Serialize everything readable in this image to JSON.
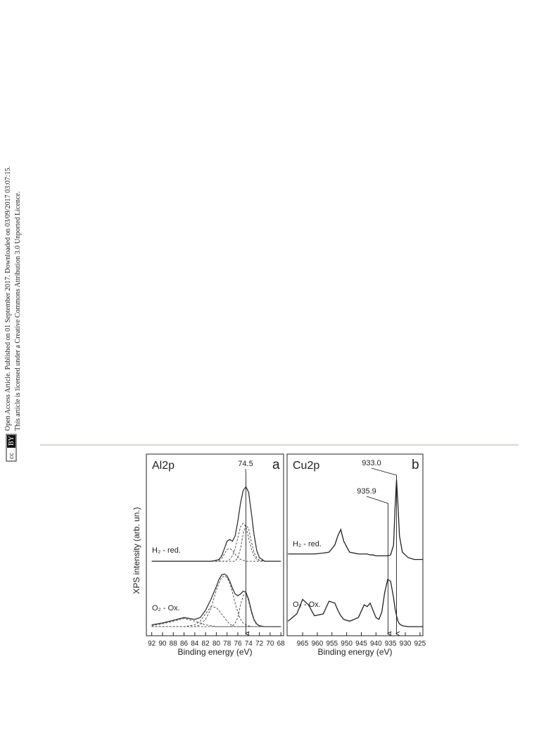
{
  "side_note": {
    "line1": "Open Access Article. Published on 01 September 2017. Downloaded on 03/09/2017 03:07:15.",
    "line2": "This article is licensed under a Creative Commons Attribution 3.0 Unported Licence.",
    "badge_cc": "cc",
    "badge_by": "BY"
  },
  "chart_data": [
    {
      "type": "line",
      "title": "Al2p",
      "panel": "a",
      "xlabel": "Binding energy (eV)",
      "ylabel": "XPS intensity (arb. un.)",
      "xlim": [
        93,
        67.5
      ],
      "ylim": [
        0,
        100
      ],
      "xticks": [
        92,
        90,
        88,
        86,
        84,
        82,
        80,
        78,
        76,
        74,
        72,
        70,
        68
      ],
      "labels": [
        "H₂ - red.",
        "O₂ - Ox."
      ],
      "markers": [
        74.5
      ],
      "x": [
        92,
        90,
        88,
        86,
        84,
        83,
        82,
        81,
        80,
        79.5,
        79,
        78.5,
        78,
        77.5,
        77,
        76.5,
        76,
        75.5,
        75,
        74.5,
        74,
        73.5,
        73,
        72.5,
        72,
        71,
        70,
        68
      ],
      "series": [
        {
          "color": "#333333",
          "style": "solid",
          "values": [
            41,
            41,
            41,
            41,
            41,
            41,
            41,
            41,
            41.5,
            42,
            44,
            48,
            52,
            53,
            52,
            55,
            63,
            73,
            80,
            82,
            79,
            68,
            56,
            47,
            43,
            41,
            41,
            41
          ]
        },
        {
          "color": "#444444",
          "style": "dashed",
          "values": [
            41,
            41,
            41,
            41,
            41,
            41,
            41,
            41,
            41,
            41.5,
            42.5,
            45,
            47.5,
            48,
            47,
            45,
            43,
            42,
            41.5,
            41,
            41,
            41,
            41,
            41,
            41,
            41,
            41,
            41
          ]
        },
        {
          "color": "#444444",
          "style": "dashed",
          "values": [
            41,
            41,
            41,
            41,
            41,
            41,
            41,
            41,
            41,
            41,
            41,
            41,
            41,
            42,
            44,
            48,
            54,
            60,
            62,
            60,
            54,
            48,
            44,
            42,
            41.5,
            41,
            41,
            41
          ]
        },
        {
          "color": "#444444",
          "style": "dashed",
          "values": [
            41,
            41,
            41,
            41,
            41,
            41,
            41,
            41,
            41,
            41,
            41,
            41,
            41,
            41,
            41,
            41,
            43,
            48,
            56,
            61,
            59,
            52,
            46,
            43,
            41.5,
            41,
            41,
            41
          ]
        },
        {
          "color": "#333333",
          "style": "solid",
          "values": [
            6,
            7,
            8.5,
            10,
            9,
            10,
            14,
            20,
            27,
            31,
            33.5,
            34,
            33,
            30,
            26,
            23,
            22,
            23,
            24.5,
            24,
            20,
            14,
            9,
            6.5,
            5.5,
            5,
            5,
            5
          ]
        },
        {
          "color": "#444444",
          "style": "dashed",
          "values": [
            5.5,
            6.5,
            8,
            9.5,
            8,
            7,
            6,
            5.5,
            5,
            5,
            5,
            5,
            5,
            5,
            5,
            5,
            5,
            5,
            5,
            5,
            5,
            5,
            5,
            5,
            5,
            5,
            5,
            5
          ]
        },
        {
          "color": "#444444",
          "style": "dashed",
          "values": [
            5,
            5,
            5,
            5,
            6,
            8,
            12,
            16,
            15.5,
            14,
            12,
            10,
            8,
            6.5,
            5.5,
            5,
            5,
            5,
            5,
            5,
            5,
            5,
            5,
            5,
            5,
            5,
            5,
            5
          ]
        },
        {
          "color": "#444444",
          "style": "dashed",
          "values": [
            5,
            5,
            5,
            5,
            5,
            6,
            9,
            15,
            25,
            29,
            32,
            33,
            32,
            29,
            24,
            18,
            13,
            9,
            7,
            6,
            5.5,
            5,
            5,
            5,
            5,
            5,
            5,
            5
          ]
        },
        {
          "color": "#444444",
          "style": "dashed",
          "values": [
            5,
            5,
            5,
            5,
            5,
            5,
            5,
            5,
            5,
            5,
            5,
            5,
            5,
            5,
            5.5,
            7,
            10,
            17,
            22,
            23.5,
            19,
            13,
            8.5,
            6,
            5.5,
            5,
            5,
            5
          ]
        }
      ]
    },
    {
      "type": "line",
      "title": "Cu2p",
      "panel": "b",
      "xlabel": "Binding energy (eV)",
      "xlim": [
        970.3,
        924
      ],
      "ylim": [
        0,
        100
      ],
      "xticks": [
        965,
        960,
        955,
        950,
        945,
        940,
        935,
        930,
        925
      ],
      "labels": [
        "H₂ - red.",
        "O₂ - Ox."
      ],
      "markers": [
        {
          "value": 933.0,
          "label": "933.0"
        },
        935.9
      ],
      "x": [
        970,
        967,
        965,
        963,
        961,
        958,
        956,
        954,
        953,
        952,
        951,
        949,
        946,
        944,
        943,
        942,
        941,
        940,
        939,
        938,
        937,
        936,
        935,
        934,
        933.5,
        933,
        932.5,
        932,
        931,
        929,
        927,
        924
      ],
      "series": [
        {
          "color": "#222222",
          "style": "solid",
          "values": [
            45,
            45,
            45,
            45,
            45,
            45.5,
            46,
            50,
            55,
            58.5,
            52,
            46,
            45,
            45,
            45,
            44.5,
            44.5,
            44,
            44,
            44,
            44,
            44,
            44.5,
            50,
            70,
            86,
            72,
            55,
            46,
            43,
            42,
            42
          ]
        },
        {
          "color": "#222222",
          "style": "solid",
          "values": [
            8,
            12,
            20,
            17,
            11,
            12,
            19,
            18,
            14,
            11,
            9,
            8,
            10,
            17,
            16,
            18,
            14,
            10,
            9,
            13,
            24,
            31,
            30,
            21,
            15,
            11,
            8,
            6.5,
            5.5,
            5,
            5,
            5
          ]
        }
      ]
    }
  ]
}
